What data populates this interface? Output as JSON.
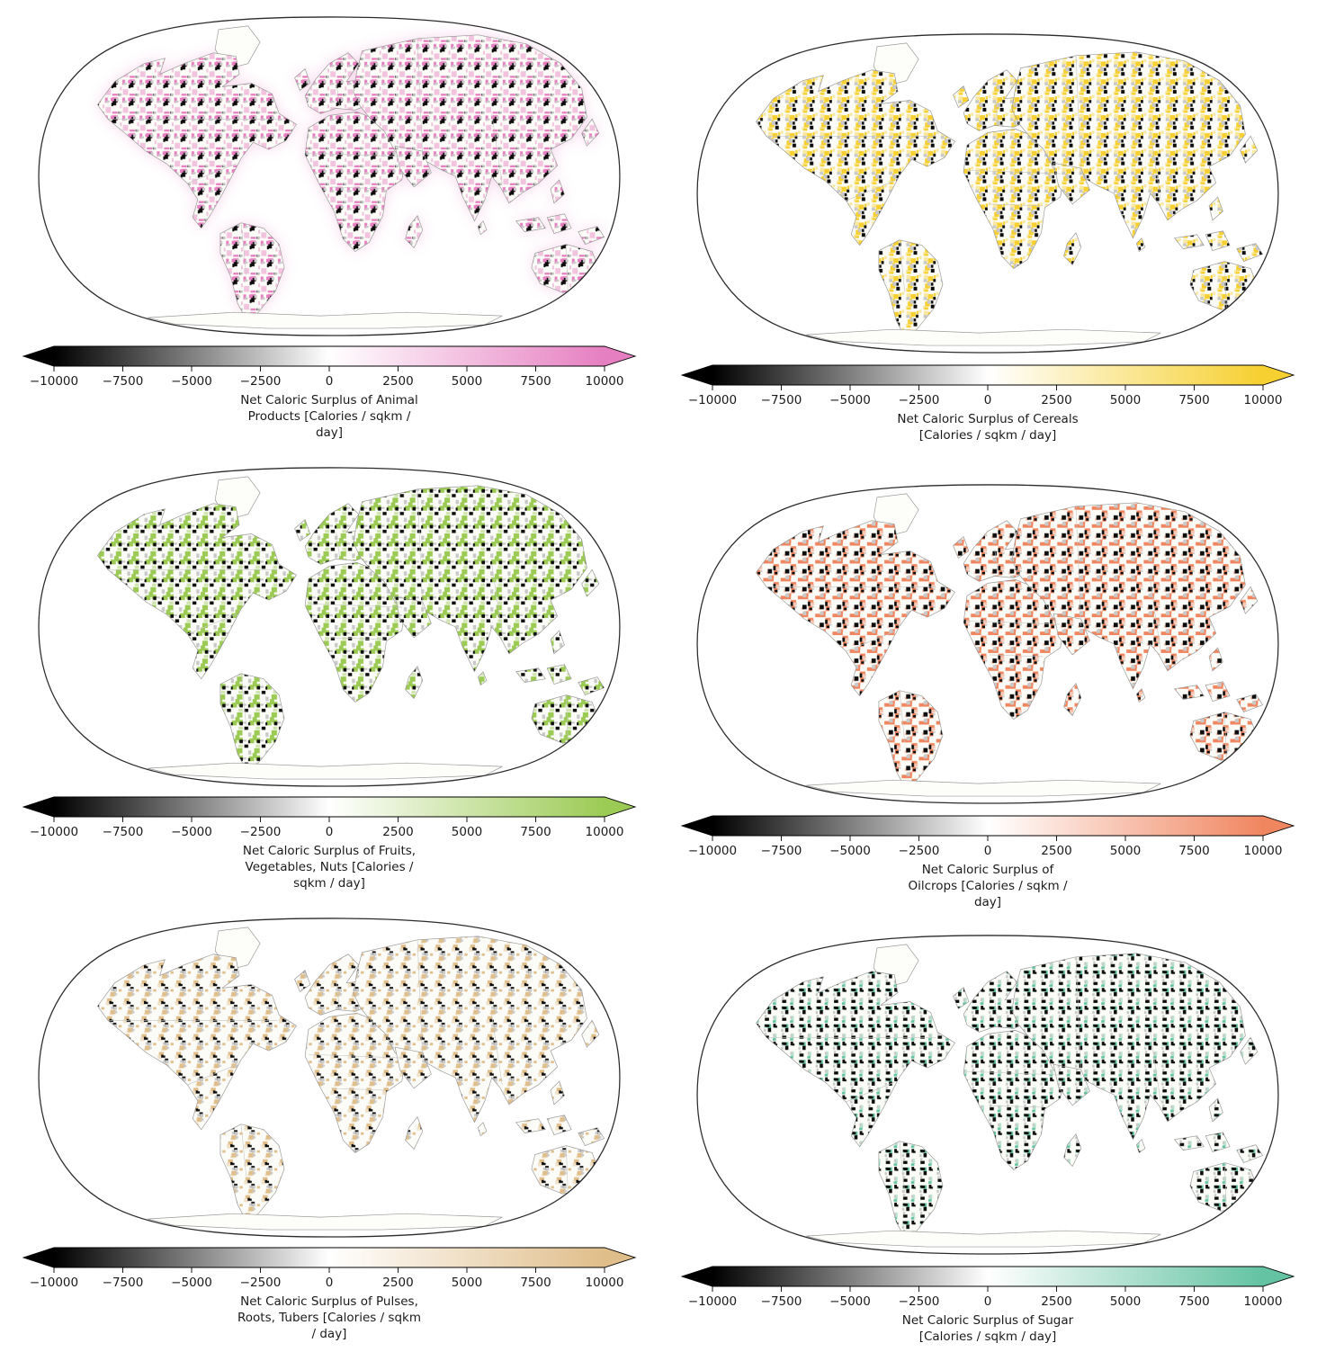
{
  "figure": {
    "background": "#ffffff",
    "text_color": "#1a1a1a",
    "description": "Six world maps (Robinson-style projection) of net caloric surplus by food group, each with a diverging black-to-white-to-color horizontal colorbar extended with arrows at both ends"
  },
  "chart_data": [
    {
      "id": "animal-products",
      "type": "map",
      "category": "Animal Products",
      "label": "Net Caloric Surplus of Animal Products [Calories / sqkm / day]",
      "label_lines": [
        "Net Caloric Surplus of Animal",
        "Products [Calories / sqkm /",
        "day]"
      ],
      "units": "Calories / sqkm / day",
      "colormap": {
        "negative": "#000000",
        "zero": "#ffffff",
        "positive": "#e67fc1"
      },
      "colorbar": {
        "range": [
          -10000,
          10000
        ],
        "extend": "both",
        "tick_values": [
          -10000,
          -7500,
          -5000,
          -2500,
          0,
          2500,
          5000,
          7500,
          10000
        ],
        "tick_labels": [
          "−10000",
          "−7500",
          "−5000",
          "−2500",
          "0",
          "2500",
          "5000",
          "7500",
          "10000"
        ]
      }
    },
    {
      "id": "cereals",
      "type": "map",
      "category": "Cereals",
      "label": "Net Caloric Surplus of Cereals [Calories / sqkm / day]",
      "label_lines": [
        "Net Caloric Surplus of Cereals",
        "[Calories / sqkm / day]"
      ],
      "units": "Calories / sqkm / day",
      "colormap": {
        "negative": "#000000",
        "zero": "#ffffff",
        "positive": "#f6d030"
      },
      "colorbar": {
        "range": [
          -10000,
          10000
        ],
        "extend": "both",
        "tick_values": [
          -10000,
          -7500,
          -5000,
          -2500,
          0,
          2500,
          5000,
          7500,
          10000
        ],
        "tick_labels": [
          "−10000",
          "−7500",
          "−5000",
          "−2500",
          "0",
          "2500",
          "5000",
          "7500",
          "10000"
        ]
      }
    },
    {
      "id": "fruits-vegetables-nuts",
      "type": "map",
      "category": "Fruits, Vegetables, Nuts",
      "label": "Net Caloric Surplus of Fruits, Vegetables, Nuts [Calories / sqkm / day]",
      "label_lines": [
        "Net Caloric Surplus of Fruits,",
        "Vegetables, Nuts [Calories /",
        "sqkm / day]"
      ],
      "units": "Calories / sqkm / day",
      "colormap": {
        "negative": "#000000",
        "zero": "#ffffff",
        "positive": "#9ccb55"
      },
      "colorbar": {
        "range": [
          -10000,
          10000
        ],
        "extend": "both",
        "tick_values": [
          -10000,
          -7500,
          -5000,
          -2500,
          0,
          2500,
          5000,
          7500,
          10000
        ],
        "tick_labels": [
          "−10000",
          "−7500",
          "−5000",
          "−2500",
          "0",
          "2500",
          "5000",
          "7500",
          "10000"
        ]
      }
    },
    {
      "id": "oilcrops",
      "type": "map",
      "category": "Oilcrops",
      "label": "Net Caloric Surplus of Oilcrops [Calories / sqkm / day]",
      "label_lines": [
        "Net Caloric Surplus of",
        "Oilcrops [Calories / sqkm /",
        "day]"
      ],
      "units": "Calories / sqkm / day",
      "colormap": {
        "negative": "#000000",
        "zero": "#ffffff",
        "positive": "#f08660"
      },
      "colorbar": {
        "range": [
          -10000,
          10000
        ],
        "extend": "both",
        "tick_values": [
          -10000,
          -7500,
          -5000,
          -2500,
          0,
          2500,
          5000,
          7500,
          10000
        ],
        "tick_labels": [
          "−10000",
          "−7500",
          "−5000",
          "−2500",
          "0",
          "2500",
          "5000",
          "7500",
          "10000"
        ]
      }
    },
    {
      "id": "pulses-roots-tubers",
      "type": "map",
      "category": "Pulses, Roots, Tubers",
      "label": "Net Caloric Surplus of Pulses, Roots, Tubers [Calories / sqkm / day]",
      "label_lines": [
        "Net Caloric Surplus of Pulses,",
        "Roots, Tubers [Calories / sqkm",
        "/ day]"
      ],
      "units": "Calories / sqkm / day",
      "colormap": {
        "negative": "#000000",
        "zero": "#ffffff",
        "positive": "#e0be8a"
      },
      "colorbar": {
        "range": [
          -10000,
          10000
        ],
        "extend": "both",
        "tick_values": [
          -10000,
          -7500,
          -5000,
          -2500,
          0,
          2500,
          5000,
          7500,
          10000
        ],
        "tick_labels": [
          "−10000",
          "−7500",
          "−5000",
          "−2500",
          "0",
          "2500",
          "5000",
          "7500",
          "10000"
        ]
      }
    },
    {
      "id": "sugar",
      "type": "map",
      "category": "Sugar",
      "label": "Net Caloric Surplus of Sugar [Calories / sqkm / day]",
      "label_lines": [
        "Net Caloric Surplus of Sugar",
        "[Calories / sqkm / day]"
      ],
      "units": "Calories / sqkm / day",
      "colormap": {
        "negative": "#000000",
        "zero": "#ffffff",
        "positive": "#63c3a2"
      },
      "colorbar": {
        "range": [
          -10000,
          10000
        ],
        "extend": "both",
        "tick_values": [
          -10000,
          -7500,
          -5000,
          -2500,
          0,
          2500,
          5000,
          7500,
          10000
        ],
        "tick_labels": [
          "−10000",
          "−7500",
          "−5000",
          "−2500",
          "0",
          "2500",
          "5000",
          "7500",
          "10000"
        ]
      }
    }
  ]
}
